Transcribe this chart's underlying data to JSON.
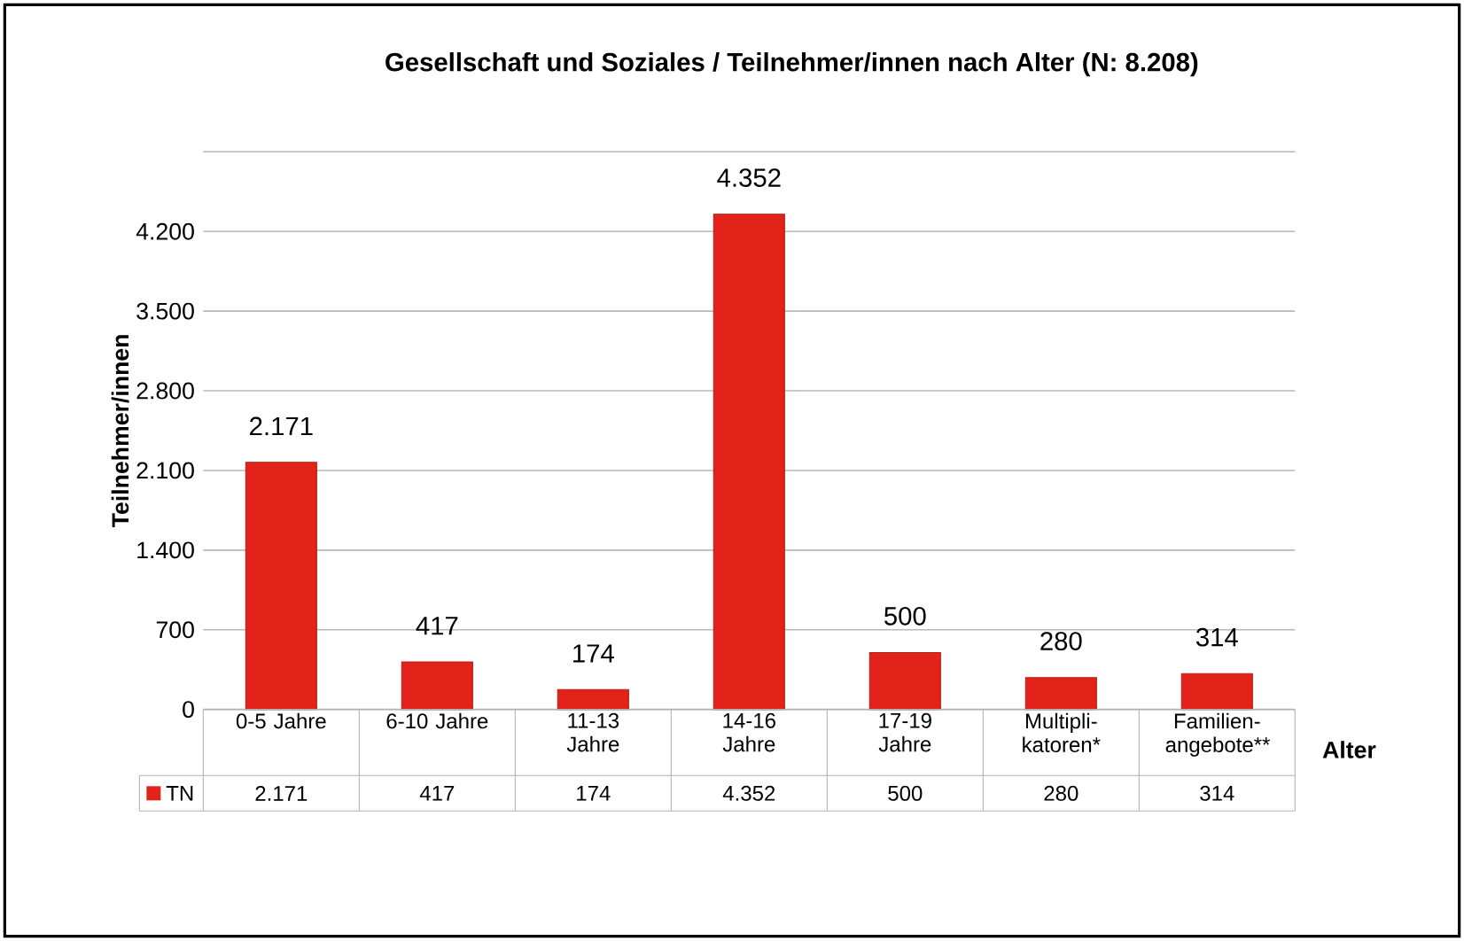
{
  "chart_data": {
    "type": "bar",
    "title": "Gesellschaft und Soziales / Teilnehmer/innen nach Alter (N: 8.208)",
    "xlabel": "Alter",
    "ylabel": "Teilnehmer/innen",
    "categories": [
      "0-5 Jahre",
      "6-10 Jahre",
      "11-13 Jahre",
      "14-16 Jahre",
      "17-19 Jahre",
      "Multipli-katoren*",
      "Familien-angebote**"
    ],
    "series": [
      {
        "name": "TN",
        "color": "#e2231a",
        "values": [
          2171,
          417,
          174,
          4352,
          500,
          280,
          314
        ],
        "value_labels": [
          "2.171",
          "417",
          "174",
          "4.352",
          "500",
          "280",
          "314"
        ]
      }
    ],
    "ylim": [
      0,
      4900
    ],
    "yticks": [
      {
        "value": 0,
        "label": "0"
      },
      {
        "value": 700,
        "label": "700"
      },
      {
        "value": 1400,
        "label": "1.400"
      },
      {
        "value": 2100,
        "label": "2.100"
      },
      {
        "value": 2800,
        "label": "2.800"
      },
      {
        "value": 3500,
        "label": "3.500"
      },
      {
        "value": 4200,
        "label": "4.200"
      },
      {
        "value": 4900,
        "label": null
      }
    ],
    "grid": "y",
    "legend": "bottom"
  }
}
